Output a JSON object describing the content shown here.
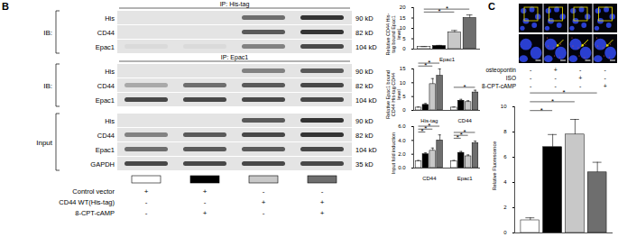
{
  "chart_data": [
    {
      "type": "bar",
      "ylabel": "Relative CD44 His-tag bound Epac1 level",
      "categories": [
        "Epac1"
      ],
      "series": [
        {
          "color": "#ffffff",
          "values": [
            1
          ],
          "errors": [
            0.2
          ]
        },
        {
          "color": "#000000",
          "values": [
            1.5
          ],
          "errors": [
            0.3
          ]
        },
        {
          "color": "#c8c8c8",
          "values": [
            8
          ],
          "errors": [
            1
          ]
        },
        {
          "color": "#6e6e6e",
          "values": [
            15
          ],
          "errors": [
            1.5
          ]
        }
      ],
      "ylim": [
        0,
        20
      ],
      "yticks": [
        0,
        5,
        10,
        15,
        20
      ],
      "significance": [
        {
          "group": 0,
          "from": 0,
          "to": 2,
          "label": "*"
        },
        {
          "group": 0,
          "from": 0,
          "to": 3,
          "label": "*"
        }
      ]
    },
    {
      "type": "bar",
      "ylabel": "Relative Epac1 bound CD44 His-tag CD44 level",
      "categories": [
        "His-tag",
        "CD44"
      ],
      "series": [
        {
          "color": "#ffffff",
          "values": [
            1,
            1
          ],
          "errors": [
            0.2,
            0.2
          ]
        },
        {
          "color": "#000000",
          "values": [
            2,
            3.5
          ],
          "errors": [
            0.5,
            0.5
          ]
        },
        {
          "color": "#c8c8c8",
          "values": [
            9.5,
            3
          ],
          "errors": [
            2,
            0.5
          ]
        },
        {
          "color": "#6e6e6e",
          "values": [
            12.5,
            6.5
          ],
          "errors": [
            2.5,
            0.8
          ]
        }
      ],
      "ylim": [
        0,
        15
      ],
      "yticks": [
        0,
        5,
        10,
        15
      ],
      "significance": [
        {
          "group": 0,
          "from": 0,
          "to": 2,
          "label": "*"
        },
        {
          "group": 0,
          "from": 0,
          "to": 3,
          "label": "*"
        },
        {
          "group": 1,
          "from": 0,
          "to": 3,
          "label": "*"
        }
      ]
    },
    {
      "type": "bar",
      "ylabel": "Input fold induction",
      "categories": [
        "CD44",
        "Epac1"
      ],
      "series": [
        {
          "color": "#ffffff",
          "values": [
            1,
            1
          ],
          "errors": [
            0.1,
            0.1
          ]
        },
        {
          "color": "#000000",
          "values": [
            2,
            2.2
          ],
          "errors": [
            0.2,
            0.2
          ]
        },
        {
          "color": "#c8c8c8",
          "values": [
            2.5,
            1.7
          ],
          "errors": [
            0.4,
            0.2
          ]
        },
        {
          "color": "#6e6e6e",
          "values": [
            4,
            3.6
          ],
          "errors": [
            0.8,
            0.3
          ]
        }
      ],
      "ylim": [
        0,
        6
      ],
      "yticks": [
        0,
        2,
        4,
        6
      ],
      "significance": [
        {
          "group": 0,
          "from": 0,
          "to": 1,
          "label": "*"
        },
        {
          "group": 0,
          "from": 0,
          "to": 2,
          "label": "*"
        },
        {
          "group": 0,
          "from": 0,
          "to": 3,
          "label": "*"
        },
        {
          "group": 1,
          "from": 0,
          "to": 1,
          "label": "*"
        },
        {
          "group": 1,
          "from": 0,
          "to": 2,
          "label": "*"
        },
        {
          "group": 1,
          "from": 0,
          "to": 3,
          "label": "*"
        }
      ]
    },
    {
      "type": "bar",
      "ylabel": "Relative Fluorescence",
      "categories": [
        null
      ],
      "series": [
        {
          "color": "#ffffff",
          "values": [
            1
          ],
          "errors": [
            0.2
          ]
        },
        {
          "color": "#000000",
          "values": [
            6.8
          ],
          "errors": [
            1
          ]
        },
        {
          "color": "#c8c8c8",
          "values": [
            7.8
          ],
          "errors": [
            1.2
          ]
        },
        {
          "color": "#6e6e6e",
          "values": [
            4.8
          ],
          "errors": [
            0.8
          ]
        }
      ],
      "ylim": [
        0,
        10
      ],
      "yticks": [
        0,
        2,
        4,
        6,
        8,
        10
      ],
      "significance": [
        {
          "group": 0,
          "from": 0,
          "to": 1,
          "label": "*"
        },
        {
          "group": 0,
          "from": 0,
          "to": 2,
          "label": "*"
        },
        {
          "group": 0,
          "from": 0,
          "to": 3,
          "label": "*"
        }
      ]
    }
  ],
  "figure": {
    "panel_B": {
      "label": "B",
      "blots": [
        {
          "title": "IP: His-tag",
          "side_label": "IB:",
          "rows": [
            {
              "protein": "His",
              "size": "90 kD"
            },
            {
              "protein": "CD44",
              "size": "82 kD"
            },
            {
              "protein": "Epac1",
              "size": "104 kD"
            }
          ]
        },
        {
          "title": "IP: Epac1",
          "side_label": "IB:",
          "rows": [
            {
              "protein": "His",
              "size": "90 kD"
            },
            {
              "protein": "CD44",
              "size": "82 kD"
            },
            {
              "protein": "Epac1",
              "size": "104 kD"
            }
          ]
        },
        {
          "side_label": "Input",
          "rows": [
            {
              "protein": "His",
              "size": "90 kD"
            },
            {
              "protein": "CD44",
              "size": "82 kD"
            },
            {
              "protein": "Epac1",
              "size": "104 kD"
            },
            {
              "protein": "GAPDH",
              "size": "35 kD"
            }
          ]
        }
      ],
      "legend": [
        {
          "label": "Control vector",
          "marks": [
            "+",
            "+",
            "-",
            "-"
          ]
        },
        {
          "label": "CD44 WT(His-tag)",
          "marks": [
            "-",
            "-",
            "+",
            "+"
          ]
        },
        {
          "label": "8-CPT-cAMP",
          "marks": [
            "-",
            "+",
            "-",
            "+"
          ]
        }
      ]
    },
    "panel_C": {
      "label": "C",
      "legend": [
        {
          "label": "osteopontin",
          "marks": [
            "-",
            "+",
            "-",
            "-"
          ]
        },
        {
          "label": "ISO",
          "marks": [
            "-",
            "-",
            "+",
            "-"
          ]
        },
        {
          "label": "8-CPT-cAMP",
          "marks": [
            "-",
            "-",
            "-",
            "+"
          ]
        }
      ]
    }
  }
}
